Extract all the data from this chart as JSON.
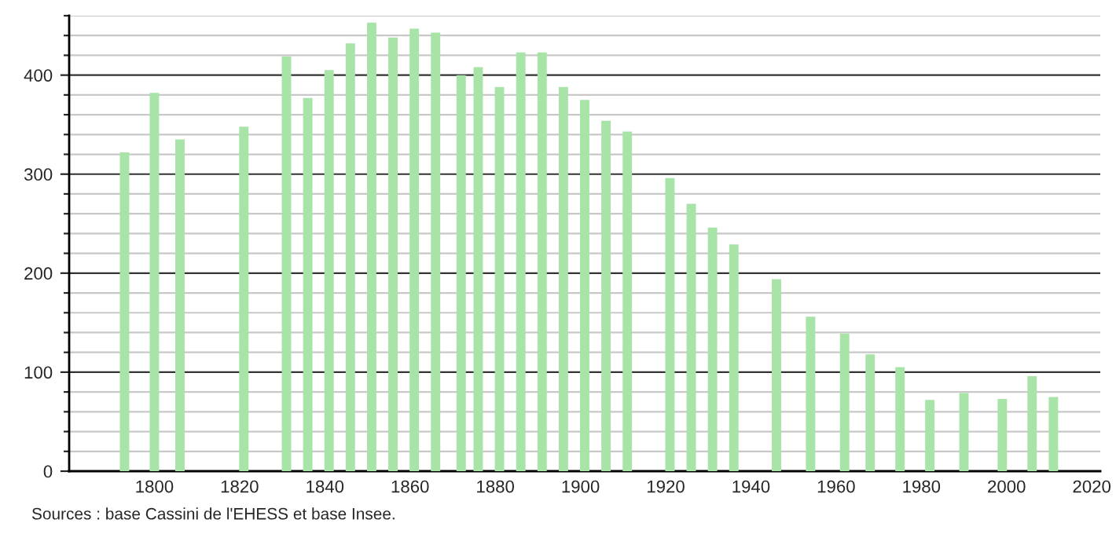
{
  "chart_data": {
    "type": "bar",
    "color": "#a8e4a8",
    "x": [
      1793,
      1800,
      1806,
      1821,
      1831,
      1836,
      1841,
      1846,
      1851,
      1856,
      1861,
      1866,
      1872,
      1876,
      1881,
      1886,
      1891,
      1896,
      1901,
      1906,
      1911,
      1921,
      1926,
      1931,
      1936,
      1946,
      1954,
      1962,
      1968,
      1975,
      1982,
      1990,
      1999,
      2006,
      2011
    ],
    "values": [
      322,
      382,
      335,
      348,
      419,
      377,
      405,
      432,
      453,
      438,
      447,
      443,
      400,
      408,
      388,
      423,
      423,
      388,
      375,
      354,
      343,
      296,
      270,
      246,
      229,
      194,
      156,
      139,
      118,
      105,
      72,
      79,
      73,
      96,
      75
    ],
    "xlim": [
      1780,
      2022
    ],
    "xticks": [
      1800,
      1820,
      1840,
      1860,
      1880,
      1900,
      1920,
      1940,
      1960,
      1980,
      2000,
      2020
    ],
    "ylim": [
      0,
      460
    ],
    "yticks": [
      0,
      {
        "value": 20,
        "label": null
      },
      {
        "value": 40,
        "label": null
      },
      {
        "value": 60,
        "label": null
      },
      {
        "value": 80,
        "label": null
      },
      100,
      {
        "value": 120,
        "label": null
      },
      {
        "value": 140,
        "label": null
      },
      {
        "value": 160,
        "label": null
      },
      {
        "value": 180,
        "label": null
      },
      200,
      {
        "value": 220,
        "label": null
      },
      {
        "value": 240,
        "label": null
      },
      {
        "value": 260,
        "label": null
      },
      {
        "value": 280,
        "label": null
      },
      300,
      {
        "value": 320,
        "label": null
      },
      {
        "value": 340,
        "label": null
      },
      {
        "value": 360,
        "label": null
      },
      {
        "value": 380,
        "label": null
      },
      400,
      {
        "value": 420,
        "label": null
      },
      {
        "value": 440,
        "label": null
      },
      {
        "value": 460,
        "label": null
      }
    ],
    "grid": "y",
    "annotations": [
      "Sources : base Cassini de l'EHESS et base Insee."
    ]
  }
}
